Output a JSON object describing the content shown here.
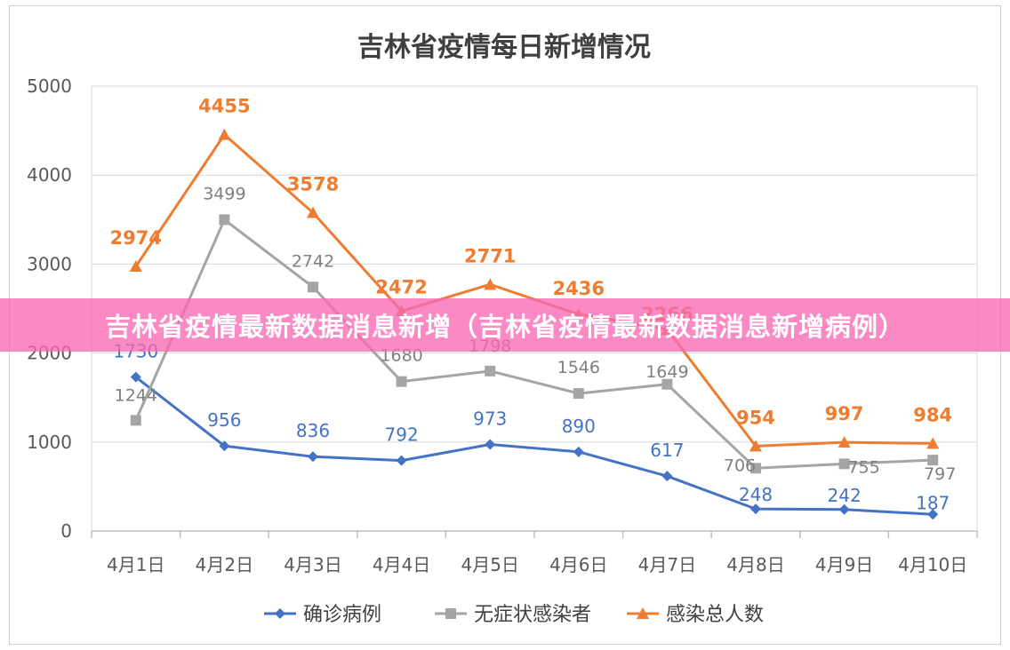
{
  "banner": {
    "text": "吉林省疫情最新数据消息新增（吉林省疫情最新数据消息新增病例）"
  },
  "chart_data": {
    "type": "line",
    "title": "吉林省疫情每日新增情况",
    "xlabel": "",
    "ylabel": "",
    "ylim": [
      0,
      5000
    ],
    "yticks": [
      0,
      1000,
      2000,
      3000,
      4000,
      5000
    ],
    "grid": true,
    "legend": "bottom",
    "categories": [
      "4月1日",
      "4月2日",
      "4月3日",
      "4月4日",
      "4月5日",
      "4月6日",
      "4月7日",
      "4月8日",
      "4月9日",
      "4月10日"
    ],
    "series": [
      {
        "name": "确诊病例",
        "color": "#4472c4",
        "marker": "diamond",
        "values": [
          1730,
          956,
          836,
          792,
          973,
          890,
          617,
          248,
          242,
          187
        ]
      },
      {
        "name": "无症状感染者",
        "color": "#a5a5a5",
        "marker": "square",
        "values": [
          1244,
          3499,
          2742,
          1680,
          1798,
          1546,
          1649,
          706,
          755,
          797
        ]
      },
      {
        "name": "感染总人数",
        "color": "#ed7d31",
        "marker": "triangle",
        "values": [
          2974,
          4455,
          3578,
          2472,
          2771,
          2436,
          2266,
          954,
          997,
          984
        ]
      }
    ]
  }
}
